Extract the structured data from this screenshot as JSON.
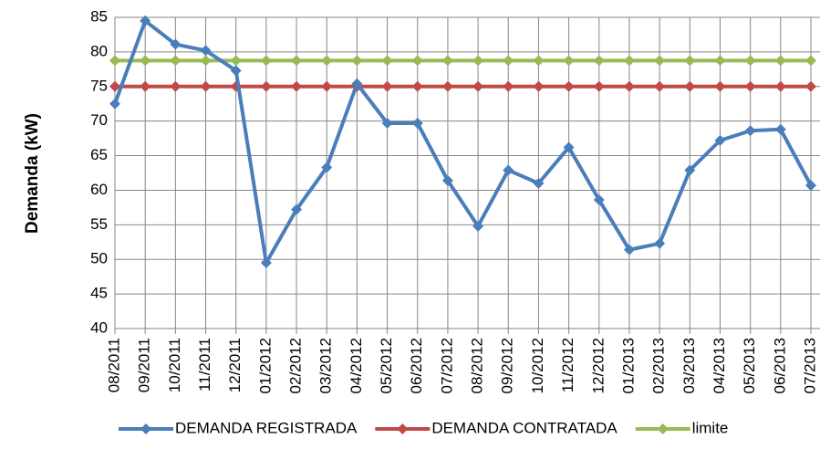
{
  "chart_data": {
    "type": "line",
    "y_label": "Demanda (kW)",
    "categories": [
      "08/2011",
      "09/2011",
      "10/2011",
      "11/2011",
      "12/2011",
      "01/2012",
      "02/2012",
      "03/2012",
      "04/2012",
      "05/2012",
      "06/2012",
      "07/2012",
      "08/2012",
      "09/2012",
      "10/2012",
      "11/2012",
      "12/2012",
      "01/2013",
      "02/2013",
      "03/2013",
      "04/2013",
      "05/2013",
      "06/2013",
      "07/2013"
    ],
    "series": [
      {
        "name": "DEMANDA REGISTRADA",
        "color": "#4a7ebb",
        "values": [
          72.5,
          84.5,
          81.1,
          80.2,
          77.3,
          49.5,
          57.2,
          63.3,
          75.4,
          69.7,
          69.7,
          61.4,
          54.8,
          62.9,
          61.0,
          66.2,
          58.6,
          51.4,
          52.3,
          62.9,
          67.2,
          68.6,
          68.8,
          60.7
        ]
      },
      {
        "name": "DEMANDA CONTRATADA",
        "color": "#be4b48",
        "values": [
          75,
          75,
          75,
          75,
          75,
          75,
          75,
          75,
          75,
          75,
          75,
          75,
          75,
          75,
          75,
          75,
          75,
          75,
          75,
          75,
          75,
          75,
          75,
          75
        ]
      },
      {
        "name": "limite",
        "color": "#98b954",
        "values": [
          78.75,
          78.75,
          78.75,
          78.75,
          78.75,
          78.75,
          78.75,
          78.75,
          78.75,
          78.75,
          78.75,
          78.75,
          78.75,
          78.75,
          78.75,
          78.75,
          78.75,
          78.75,
          78.75,
          78.75,
          78.75,
          78.75,
          78.75,
          78.75
        ]
      }
    ],
    "ylim": [
      40,
      85
    ],
    "yticks": [
      40,
      45,
      50,
      55,
      60,
      65,
      70,
      75,
      80,
      85
    ],
    "grid": true,
    "legend": "bottom"
  }
}
